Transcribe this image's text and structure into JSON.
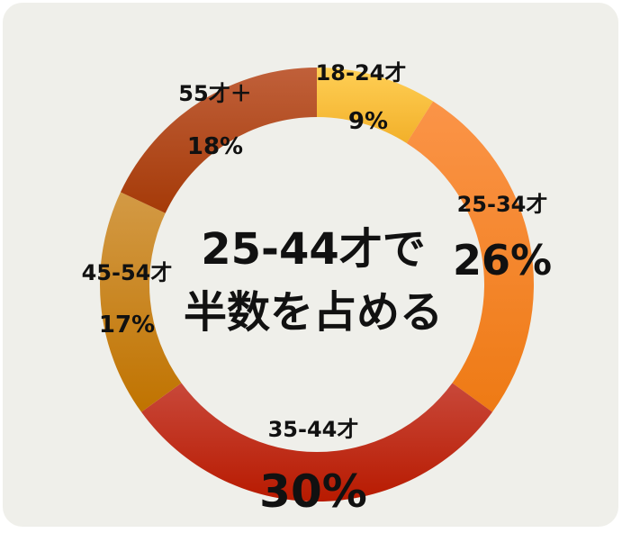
{
  "chart_data": {
    "type": "pie",
    "donut": true,
    "categories": [
      "18-24才",
      "25-34才",
      "35-44才",
      "45-54才",
      "55才＋"
    ],
    "values": [
      9,
      26,
      30,
      17,
      18
    ],
    "value_labels": [
      "9%",
      "26%",
      "30%",
      "17%",
      "18%"
    ],
    "colors": [
      "#fcbc40",
      "#f6832a",
      "#bf2a10",
      "#c9830a",
      "#b34e1a"
    ],
    "center_text": [
      "25-44才で",
      "半数を占める"
    ],
    "legend": "none"
  }
}
